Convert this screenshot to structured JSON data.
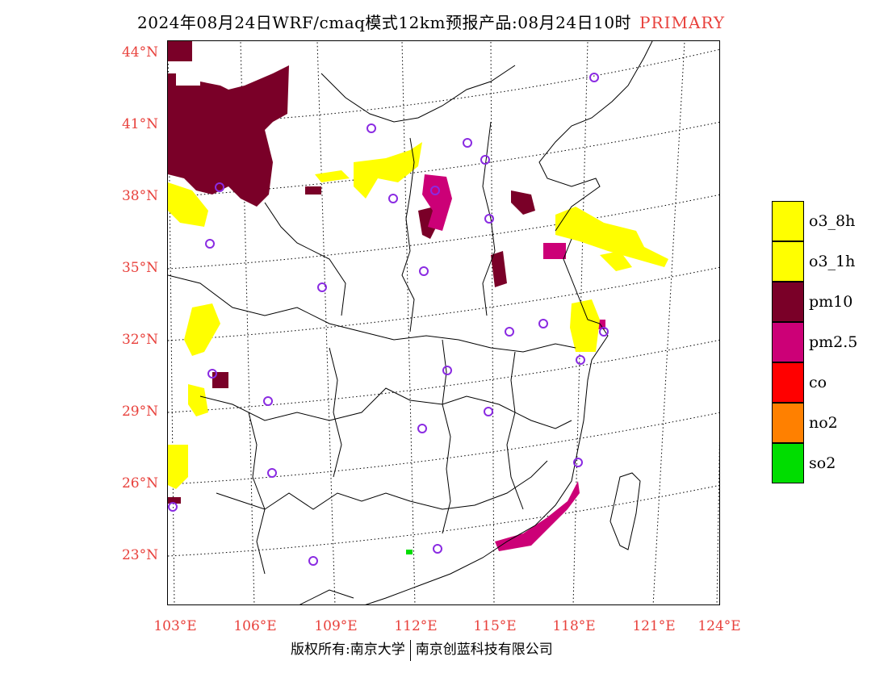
{
  "title": {
    "text": "2024年08月24日WRF/cmaq模式12km预报产品:08月24日10时",
    "tag": "PRIMARY",
    "tag_color": "#e8413c"
  },
  "axes": {
    "lat_labels": [
      "44°N",
      "41°N",
      "38°N",
      "35°N",
      "32°N",
      "29°N",
      "26°N",
      "23°N"
    ],
    "lon_labels": [
      "103°E",
      "106°E",
      "109°E",
      "112°E",
      "115°E",
      "118°E",
      "121°E",
      "124°E"
    ],
    "label_color": "#e8413c"
  },
  "legend": {
    "items": [
      {
        "label": "o3_8h",
        "color": "#ffff00"
      },
      {
        "label": "o3_1h",
        "color": "#ffff00"
      },
      {
        "label": "pm10",
        "color": "#7a0028"
      },
      {
        "label": "pm2.5",
        "color": "#cc0077"
      },
      {
        "label": "co",
        "color": "#ff0000"
      },
      {
        "label": "no2",
        "color": "#ff8000"
      },
      {
        "label": "so2",
        "color": "#00dd00"
      }
    ]
  },
  "footer": {
    "left": "版权所有:南京大学",
    "right": "南京创蓝科技有限公司"
  },
  "colors": {
    "o3": "#ffff00",
    "pm10": "#7a0028",
    "pm25": "#cc0077",
    "so2": "#00dd00",
    "station_ring": "#8a2be2"
  }
}
